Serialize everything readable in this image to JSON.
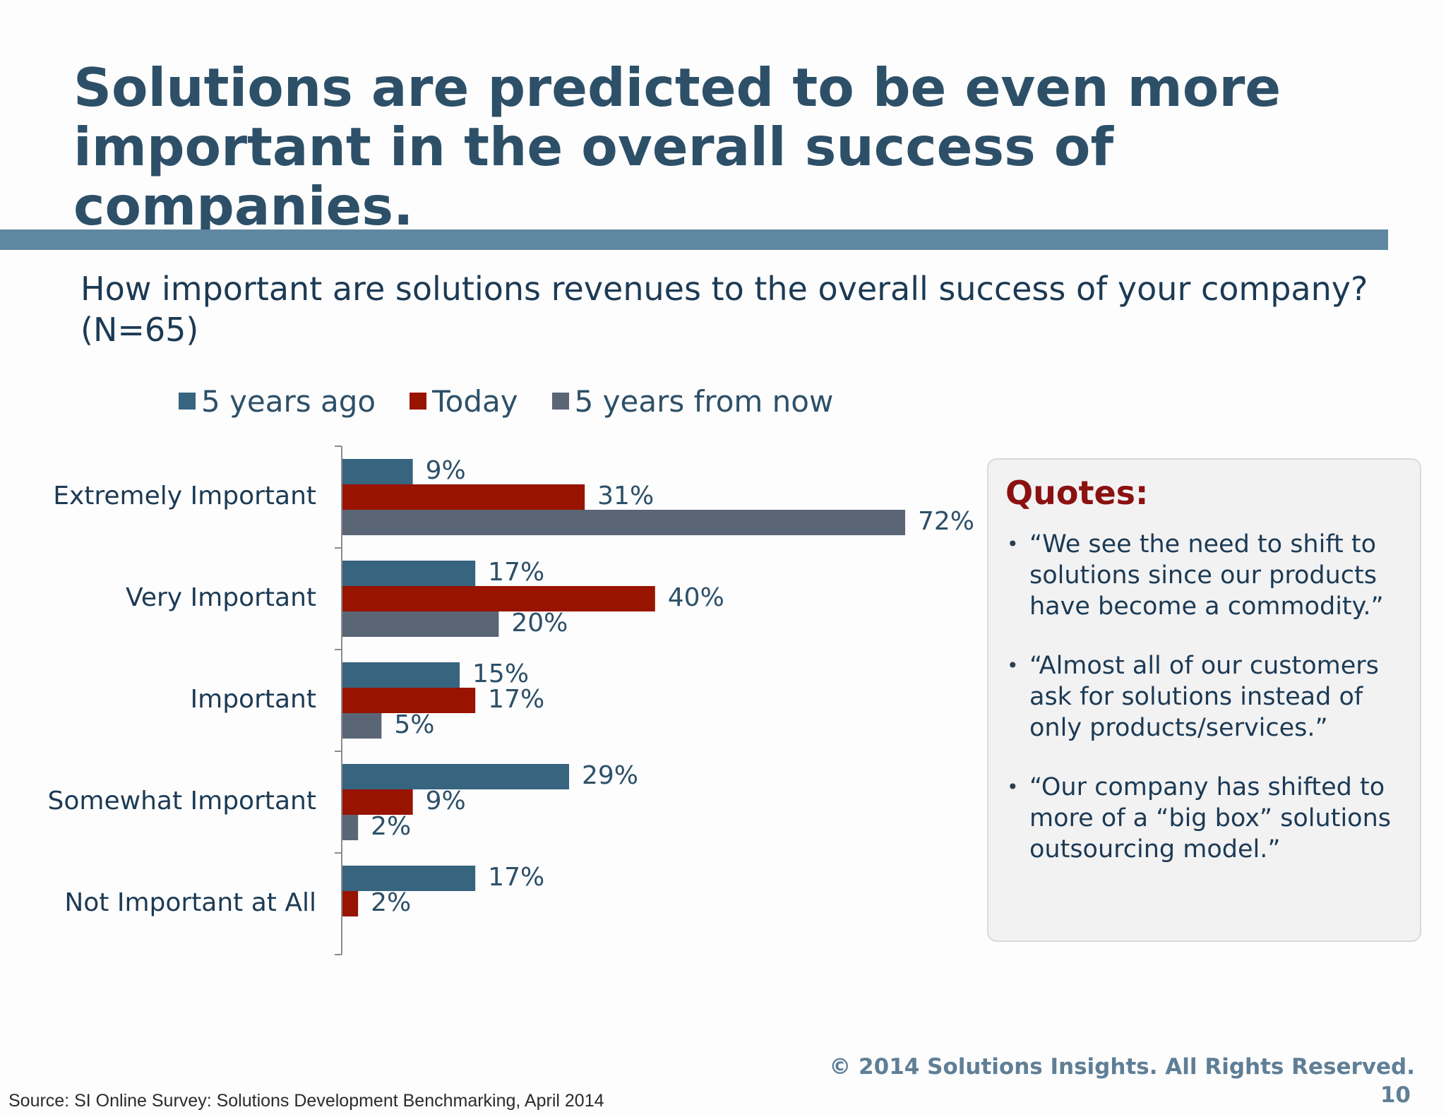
{
  "slide": {
    "title_line1": "Solutions are predicted to be even more",
    "title_line2": "important in the overall success of companies.",
    "question_line1": "How important are solutions revenues to the overall success of your company?",
    "question_line2": "(N=65)"
  },
  "colors": {
    "title": "#2d5068",
    "rule_bar": "#5f87a1",
    "quote_heading": "#8b1111",
    "five_years_ago": "#37647f",
    "today": "#981300",
    "five_years_from_now": "#5a6576"
  },
  "chart_data": {
    "type": "bar",
    "orientation": "horizontal",
    "categories": [
      "Extremely Important",
      "Very Important",
      "Important",
      "Somewhat Important",
      "Not Important at All"
    ],
    "series": [
      {
        "name": "5 years ago",
        "values": [
          9,
          17,
          15,
          29,
          17
        ],
        "color": "#37647f"
      },
      {
        "name": "Today",
        "values": [
          31,
          40,
          17,
          9,
          2
        ],
        "color": "#981300"
      },
      {
        "name": "5 years from now",
        "values": [
          72,
          20,
          5,
          2,
          null
        ],
        "color": "#5a6576"
      }
    ],
    "value_suffix": "%",
    "xlim": [
      0,
      100
    ],
    "legend_position": "top",
    "grid": false
  },
  "quotes": {
    "heading": "Quotes:",
    "items": [
      {
        "line1": "“We see the need to shift to",
        "line2": "solutions since our products",
        "line3": "have become a commodity.”"
      },
      {
        "line1": "“Almost all of our customers",
        "line2": "ask for solutions instead of",
        "line3": "only products/services.”"
      },
      {
        "line1": "“Our company has shifted to",
        "line2": "more of a “big box” solutions",
        "line3": "outsourcing model.”"
      }
    ]
  },
  "footer": {
    "copyright": "© 2014 Solutions Insights. All Rights Reserved.",
    "page_number": "10",
    "source": "Source: SI Online Survey: Solutions Development Benchmarking, April 2014"
  }
}
